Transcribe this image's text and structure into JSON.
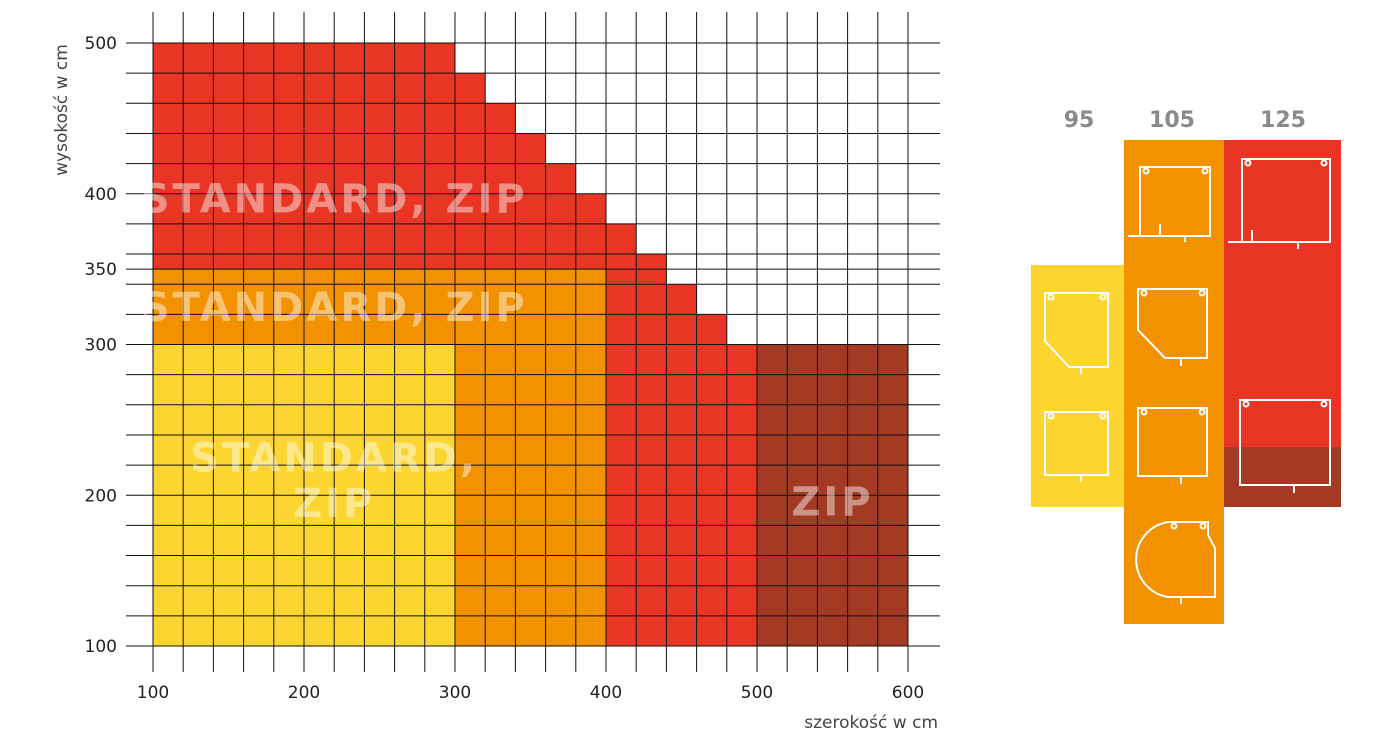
{
  "chart_data": {
    "type": "heatmap",
    "x_axis": {
      "label": "szerokość w cm",
      "range": [
        100,
        600
      ],
      "step": 20,
      "tick_labels": [
        "100",
        "200",
        "300",
        "400",
        "500",
        "600"
      ]
    },
    "y_axis": {
      "label": "wysokość w cm",
      "range": [
        100,
        500
      ],
      "step": 20,
      "tick_labels": [
        "100",
        "200",
        "300",
        "350",
        "400",
        "500"
      ]
    },
    "zones": [
      {
        "name": "box-95",
        "color": "#FDD530",
        "labels": [
          "STANDARD,",
          "ZIP"
        ],
        "regions": [
          {
            "x": [
              100,
              300
            ],
            "y": [
              100,
              300
            ]
          }
        ]
      },
      {
        "name": "box-105",
        "color": "#F29200",
        "labels": [
          "STANDARD, ZIP"
        ],
        "regions": [
          {
            "x": [
              100,
              400
            ],
            "y": [
              300,
              350
            ]
          },
          {
            "x": [
              300,
              400
            ],
            "y": [
              100,
              300
            ]
          }
        ]
      },
      {
        "name": "box-125",
        "color": "#E83524",
        "labels": [
          "STANDARD, ZIP"
        ],
        "regions": [
          {
            "x": [
              100,
              300
            ],
            "y": [
              350,
              500
            ]
          },
          {
            "x": [
              300,
              320
            ],
            "y": [
              350,
              480
            ]
          },
          {
            "x": [
              320,
              340
            ],
            "y": [
              350,
              460
            ]
          },
          {
            "x": [
              340,
              360
            ],
            "y": [
              350,
              440
            ]
          },
          {
            "x": [
              360,
              380
            ],
            "y": [
              350,
              420
            ]
          },
          {
            "x": [
              380,
              400
            ],
            "y": [
              350,
              400
            ]
          },
          {
            "x": [
              400,
              420
            ],
            "y": [
              100,
              380
            ]
          },
          {
            "x": [
              420,
              440
            ],
            "y": [
              100,
              360
            ]
          },
          {
            "x": [
              440,
              460
            ],
            "y": [
              100,
              340
            ]
          },
          {
            "x": [
              460,
              480
            ],
            "y": [
              100,
              320
            ]
          },
          {
            "x": [
              480,
              500
            ],
            "y": [
              100,
              300
            ]
          }
        ]
      },
      {
        "name": "zip-only",
        "color": "#A33A24",
        "labels": [
          "ZIP"
        ],
        "regions": [
          {
            "x": [
              500,
              600
            ],
            "y": [
              100,
              300
            ]
          }
        ]
      }
    ]
  },
  "legend": {
    "columns": [
      {
        "label": "95",
        "color": "#FDD530",
        "profiles": [
          "chamfered",
          "square"
        ]
      },
      {
        "label": "105",
        "color": "#F29200",
        "profiles": [
          "square-with-rail",
          "chamfered",
          "square",
          "round"
        ]
      },
      {
        "label": "125",
        "color": "#E83524",
        "accent": "#A33A24",
        "profiles": [
          "square-with-rail",
          "square"
        ]
      }
    ]
  }
}
